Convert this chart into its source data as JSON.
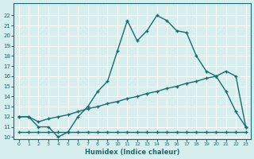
{
  "xlabel": "Humidex (Indice chaleur)",
  "bg_color": "#d6eeee",
  "grid_color": "#ffffff",
  "line_color": "#1a6b6b",
  "ylim": [
    10,
    23
  ],
  "xlim": [
    0,
    23
  ],
  "yticks": [
    10,
    11,
    12,
    13,
    14,
    15,
    16,
    17,
    18,
    19,
    20,
    21,
    22
  ],
  "xticks": [
    0,
    1,
    2,
    3,
    4,
    5,
    6,
    7,
    8,
    9,
    10,
    11,
    12,
    13,
    14,
    15,
    16,
    17,
    18,
    19,
    20,
    21,
    22,
    23
  ],
  "line1_x": [
    0,
    1,
    2,
    3,
    4,
    5,
    6,
    7,
    8,
    9,
    10,
    11,
    12,
    13,
    14,
    15,
    16,
    17,
    18,
    19,
    20,
    21,
    22,
    23
  ],
  "line1_y": [
    12,
    12,
    11,
    11,
    10,
    10.5,
    12,
    13,
    14.5,
    15.5,
    18.5,
    21.5,
    19.5,
    20.5,
    22.0,
    21.5,
    20.5,
    20.3,
    18.0,
    16.5,
    16.0,
    14.5,
    12.5,
    11.0
  ],
  "line2_x": [
    0,
    1,
    2,
    3,
    4,
    5,
    6,
    7,
    8,
    9,
    10,
    11,
    12,
    13,
    14,
    15,
    16,
    17,
    18,
    19,
    20,
    21,
    22,
    23
  ],
  "line2_y": [
    12,
    12,
    11.5,
    11.8,
    12.0,
    12.2,
    12.5,
    12.8,
    13.0,
    13.3,
    13.5,
    13.8,
    14.0,
    14.3,
    14.5,
    14.8,
    15.0,
    15.3,
    15.5,
    15.8,
    16.0,
    16.5,
    16.0,
    11.0
  ],
  "line3_x": [
    0,
    1,
    2,
    3,
    4,
    5,
    6,
    7,
    8,
    9,
    10,
    11,
    12,
    13,
    14,
    15,
    16,
    17,
    18,
    19,
    20,
    21,
    22,
    23
  ],
  "line3_y": [
    10.5,
    10.5,
    10.5,
    10.5,
    10.5,
    10.5,
    10.5,
    10.5,
    10.5,
    10.5,
    10.5,
    10.5,
    10.5,
    10.5,
    10.5,
    10.5,
    10.5,
    10.5,
    10.5,
    10.5,
    10.5,
    10.5,
    10.5,
    10.5
  ]
}
